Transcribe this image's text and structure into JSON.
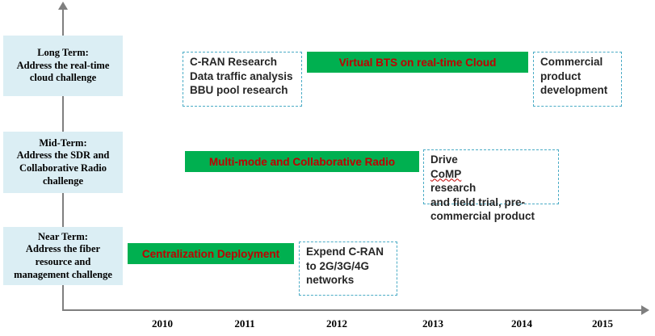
{
  "rows": [
    {
      "key": "long",
      "lines": [
        "Long Term:",
        "Address the real-time",
        "cloud challenge"
      ]
    },
    {
      "key": "mid",
      "lines": [
        "Mid-Term:",
        "Address the SDR and",
        "Collaborative Radio",
        "challenge"
      ]
    },
    {
      "key": "near",
      "lines": [
        "Near Term:",
        "Address the fiber",
        "resource and",
        "management challenge"
      ]
    }
  ],
  "bars": {
    "virtual_bts": "Virtual BTS on real-time Cloud",
    "multi_mode": "Multi-mode and Collaborative Radio",
    "centralization": "Centralization Deployment"
  },
  "boxes": {
    "cran_research": [
      "C-RAN Research",
      "Data traffic analysis",
      "BBU pool research"
    ],
    "commercial_dev": [
      "Commercial",
      "product",
      "development"
    ],
    "drive_comp": {
      "line1_prefix": "Drive ",
      "line1_word": "CoMP",
      "line1_suffix": " research",
      "line2": "and field trial, pre-",
      "line3": "commercial product"
    },
    "expend_cran": [
      "Expend C-RAN",
      "to 2G/3G/4G",
      "networks"
    ]
  },
  "years": [
    "2010",
    "2011",
    "2012",
    "2013",
    "2014",
    "2015"
  ],
  "colors": {
    "bar_fill": "#00b050",
    "bar_text": "#c00000",
    "term_bg": "#dbeef4",
    "dashed_border": "#4bacc6"
  }
}
